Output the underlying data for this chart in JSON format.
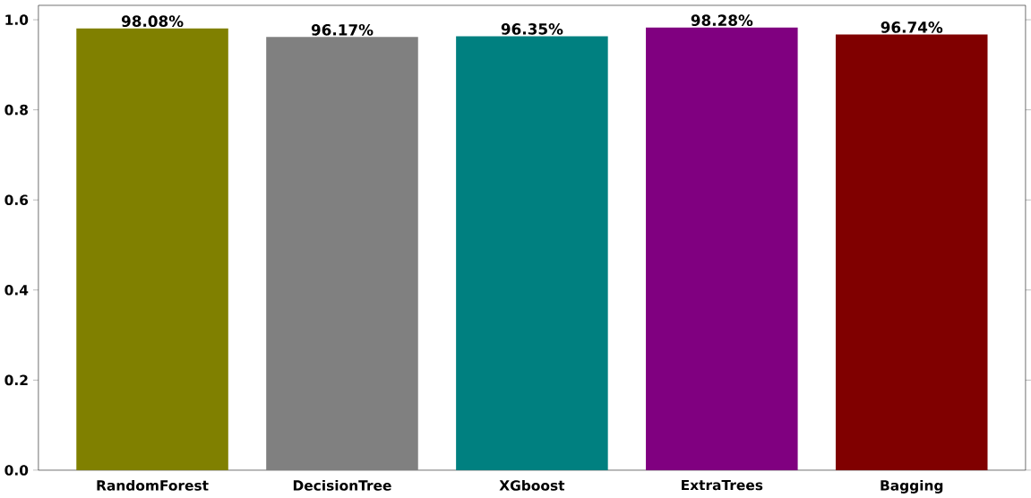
{
  "chart_data": {
    "type": "bar",
    "categories": [
      "RandomForest",
      "DecisionTree",
      "XGboost",
      "ExtraTrees",
      "Bagging"
    ],
    "values": [
      0.9808,
      0.9617,
      0.9635,
      0.9828,
      0.9674
    ],
    "colors": [
      "#808000",
      "#808080",
      "#008080",
      "#800080",
      "#800000"
    ],
    "value_labels": [
      "98.08%",
      "96.17%",
      "96.35%",
      "98.28%",
      "96.74%"
    ],
    "ylim": [
      0,
      1.032
    ],
    "yticks": [
      {
        "value": 0,
        "label": "0.0"
      },
      0.2,
      0.4,
      0.6,
      0.8,
      {
        "value": 1,
        "label": "1.0"
      }
    ],
    "grid": false
  }
}
